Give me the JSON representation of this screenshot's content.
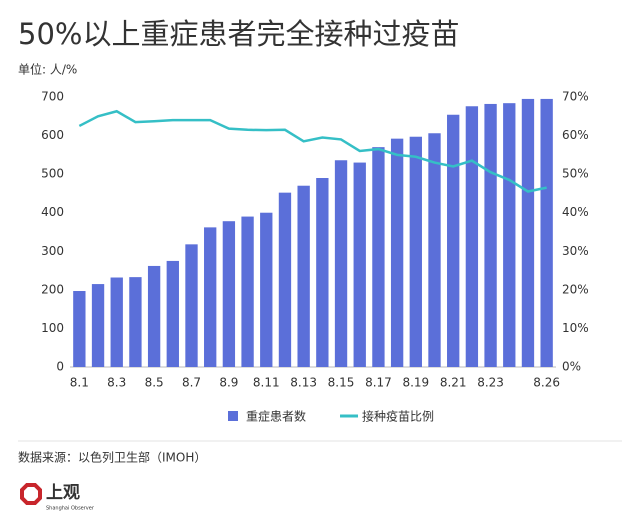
{
  "chart_data": {
    "type": "bar_line",
    "title": "50%以上重症患者完全接种过疫苗",
    "unit_label": "单位: 人/%",
    "categories": [
      "8.1",
      null,
      "8.3",
      null,
      "8.5",
      null,
      "8.7",
      null,
      "8.9",
      null,
      "8.11",
      null,
      "8.13",
      null,
      "8.15",
      null,
      "8.17",
      null,
      "8.19",
      null,
      "8.21",
      null,
      "8.23",
      null,
      null,
      "8.26"
    ],
    "series": [
      {
        "name": "重症患者数",
        "type": "bar",
        "color": "#5b6fd9",
        "values": [
          197,
          215,
          232,
          233,
          262,
          275,
          318,
          362,
          378,
          390,
          400,
          452,
          470,
          490,
          536,
          530,
          570,
          592,
          597,
          606,
          654,
          676,
          682,
          684,
          695,
          695
        ]
      },
      {
        "name": "接种疫苗比例",
        "type": "line",
        "axis": "y2",
        "color": "#35bfc6",
        "values": [
          62.5,
          65,
          66.3,
          63.5,
          63.7,
          64,
          64,
          64,
          61.8,
          61.5,
          61.4,
          61.5,
          58.5,
          59.5,
          59,
          56,
          56.5,
          55,
          54.5,
          53,
          52,
          53.5,
          50.5,
          48.5,
          45.5,
          46.5
        ]
      }
    ],
    "ylim": [
      0,
      700
    ],
    "yticks": [
      0,
      100,
      200,
      300,
      400,
      500,
      600,
      700
    ],
    "y2lim": [
      0,
      70
    ],
    "y2ticks": [
      {
        "value": 0,
        "label": "0%"
      },
      {
        "value": 10,
        "label": "10%"
      },
      {
        "value": 20,
        "label": "20%"
      },
      {
        "value": 30,
        "label": "30%"
      },
      {
        "value": 40,
        "label": "40%"
      },
      {
        "value": 50,
        "label": "50%"
      },
      {
        "value": 60,
        "label": "60%"
      },
      {
        "value": 70,
        "label": "70%"
      }
    ],
    "grid": false,
    "legend": "bottom"
  },
  "source": "数据来源：以色列卫生部（IMOH）",
  "brand": {
    "name": "上观",
    "tagline": "Shanghai Observer"
  }
}
